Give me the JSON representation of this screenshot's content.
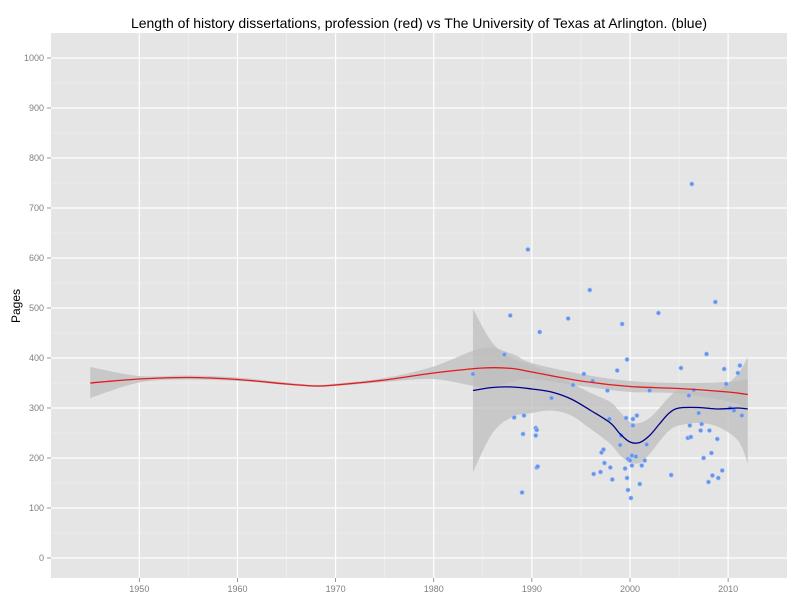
{
  "chart_data": {
    "type": "scatter",
    "title": "Length of history dissertations, profession (red) vs The University of Texas at Arlington. (blue)",
    "xlabel": "",
    "ylabel": "Pages",
    "xlim": [
      1941,
      2016
    ],
    "ylim": [
      -40,
      1050
    ],
    "x_ticks": [
      1950,
      1960,
      1970,
      1980,
      1990,
      2000,
      2010
    ],
    "y_ticks": [
      0,
      100,
      200,
      300,
      400,
      500,
      600,
      700,
      800,
      900,
      1000
    ],
    "grid": true,
    "legend": "none",
    "colors": {
      "panel": "#e5e5e5",
      "grid_major": "#ffffff",
      "grid_minor": "#f2f2f2",
      "band": "#bdbdbd",
      "profession": "#e41a1c",
      "uta": "#00008b",
      "points": "#6495ed"
    },
    "series": [
      {
        "role": "profession-smooth",
        "color": "#e41a1c",
        "x": [
          1945,
          1950,
          1955,
          1960,
          1965,
          1968,
          1970,
          1975,
          1980,
          1985,
          1988,
          1990,
          1995,
          2000,
          2005,
          2010,
          2012
        ],
        "y": [
          350,
          358,
          361,
          357,
          348,
          344,
          346,
          356,
          370,
          380,
          379,
          372,
          354,
          343,
          339,
          332,
          327
        ],
        "band_lower": [
          320,
          351,
          357,
          354,
          346,
          342,
          344,
          352,
          358,
          342,
          352,
          358,
          344,
          332,
          329,
          313,
          300
        ],
        "band_upper": [
          382,
          364,
          365,
          361,
          351,
          346,
          349,
          360,
          383,
          420,
          408,
          390,
          368,
          354,
          350,
          352,
          358
        ]
      },
      {
        "role": "uta-smooth",
        "color": "#00008b",
        "x": [
          1984,
          1986,
          1988,
          1990,
          1992,
          1994,
          1996,
          1998,
          1999,
          2000,
          2001,
          2002,
          2003,
          2004,
          2005,
          2007,
          2009,
          2011,
          2012
        ],
        "y": [
          335,
          341,
          342,
          338,
          332,
          318,
          295,
          270,
          248,
          232,
          231,
          245,
          268,
          290,
          300,
          301,
          298,
          300,
          298
        ],
        "band_lower": [
          172,
          250,
          282,
          290,
          295,
          285,
          258,
          228,
          205,
          192,
          190,
          208,
          233,
          255,
          265,
          270,
          262,
          235,
          190
        ],
        "band_upper": [
          498,
          430,
          400,
          386,
          368,
          350,
          330,
          312,
          292,
          272,
          270,
          280,
          300,
          322,
          335,
          332,
          335,
          368,
          402
        ]
      }
    ],
    "points": [
      {
        "x": 1984.0,
        "y": 368
      },
      {
        "x": 1987.2,
        "y": 407
      },
      {
        "x": 1987.8,
        "y": 485
      },
      {
        "x": 1988.2,
        "y": 281
      },
      {
        "x": 1989.0,
        "y": 131
      },
      {
        "x": 1989.1,
        "y": 248
      },
      {
        "x": 1989.2,
        "y": 285
      },
      {
        "x": 1989.6,
        "y": 617
      },
      {
        "x": 1990.4,
        "y": 260
      },
      {
        "x": 1990.4,
        "y": 245
      },
      {
        "x": 1990.5,
        "y": 256
      },
      {
        "x": 1990.5,
        "y": 181
      },
      {
        "x": 1990.6,
        "y": 183
      },
      {
        "x": 1990.8,
        "y": 452
      },
      {
        "x": 1992.0,
        "y": 320
      },
      {
        "x": 1993.7,
        "y": 479
      },
      {
        "x": 1994.2,
        "y": 346
      },
      {
        "x": 1995.3,
        "y": 368
      },
      {
        "x": 1995.9,
        "y": 536
      },
      {
        "x": 1996.2,
        "y": 354
      },
      {
        "x": 1996.3,
        "y": 168
      },
      {
        "x": 1997.0,
        "y": 172
      },
      {
        "x": 1997.1,
        "y": 211
      },
      {
        "x": 1997.3,
        "y": 217
      },
      {
        "x": 1997.4,
        "y": 190
      },
      {
        "x": 1997.7,
        "y": 335
      },
      {
        "x": 1997.9,
        "y": 278
      },
      {
        "x": 1998.0,
        "y": 181
      },
      {
        "x": 1998.2,
        "y": 157
      },
      {
        "x": 1998.7,
        "y": 375
      },
      {
        "x": 1999.0,
        "y": 226
      },
      {
        "x": 1999.1,
        "y": 245
      },
      {
        "x": 1999.2,
        "y": 468
      },
      {
        "x": 1999.5,
        "y": 179
      },
      {
        "x": 1999.6,
        "y": 280
      },
      {
        "x": 1999.7,
        "y": 397
      },
      {
        "x": 1999.7,
        "y": 160
      },
      {
        "x": 1999.8,
        "y": 136
      },
      {
        "x": 1999.8,
        "y": 198
      },
      {
        "x": 2000.0,
        "y": 195
      },
      {
        "x": 2000.1,
        "y": 120
      },
      {
        "x": 2000.2,
        "y": 205
      },
      {
        "x": 2000.2,
        "y": 185
      },
      {
        "x": 2000.3,
        "y": 278
      },
      {
        "x": 2000.3,
        "y": 265
      },
      {
        "x": 2000.6,
        "y": 203
      },
      {
        "x": 2000.7,
        "y": 285
      },
      {
        "x": 2001.0,
        "y": 148
      },
      {
        "x": 2001.2,
        "y": 185
      },
      {
        "x": 2001.5,
        "y": 195
      },
      {
        "x": 2001.7,
        "y": 227
      },
      {
        "x": 2002.0,
        "y": 335
      },
      {
        "x": 2002.9,
        "y": 490
      },
      {
        "x": 2004.2,
        "y": 166
      },
      {
        "x": 2005.2,
        "y": 380
      },
      {
        "x": 2005.9,
        "y": 240
      },
      {
        "x": 2006.0,
        "y": 325
      },
      {
        "x": 2006.1,
        "y": 265
      },
      {
        "x": 2006.2,
        "y": 242
      },
      {
        "x": 2006.3,
        "y": 748
      },
      {
        "x": 2006.5,
        "y": 336
      },
      {
        "x": 2007.0,
        "y": 290
      },
      {
        "x": 2007.2,
        "y": 255
      },
      {
        "x": 2007.3,
        "y": 268
      },
      {
        "x": 2007.5,
        "y": 200
      },
      {
        "x": 2007.8,
        "y": 408
      },
      {
        "x": 2008.0,
        "y": 152
      },
      {
        "x": 2008.1,
        "y": 255
      },
      {
        "x": 2008.3,
        "y": 210
      },
      {
        "x": 2008.4,
        "y": 165
      },
      {
        "x": 2008.7,
        "y": 512
      },
      {
        "x": 2008.9,
        "y": 238
      },
      {
        "x": 2009.0,
        "y": 160
      },
      {
        "x": 2009.4,
        "y": 175
      },
      {
        "x": 2009.6,
        "y": 378
      },
      {
        "x": 2009.8,
        "y": 348
      },
      {
        "x": 2010.2,
        "y": 300
      },
      {
        "x": 2010.6,
        "y": 295
      },
      {
        "x": 2011.0,
        "y": 370
      },
      {
        "x": 2011.2,
        "y": 385
      },
      {
        "x": 2011.4,
        "y": 285
      }
    ]
  }
}
